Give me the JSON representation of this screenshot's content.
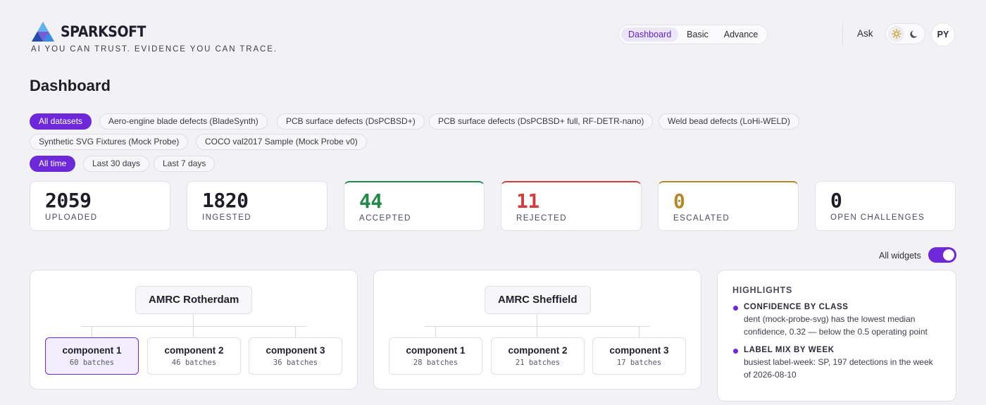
{
  "brand": {
    "name": "SPARKSOFT",
    "tagline": "AI YOU CAN TRUST. EVIDENCE YOU CAN TRACE.",
    "logo_icon": "triangle-logo-icon",
    "colors": {
      "accent": "#6d28d9",
      "accepted": "#23894a",
      "rejected": "#d43c3c",
      "escalated": "#b2892b"
    }
  },
  "nav": {
    "items": [
      {
        "label": "Dashboard",
        "active": true
      },
      {
        "label": "Basic",
        "active": false
      },
      {
        "label": "Advance",
        "active": false
      }
    ],
    "ask_label": "Ask",
    "theme": {
      "light_icon": "sun-icon",
      "dark_icon": "moon-icon",
      "selected": "light"
    },
    "avatar_initials": "PY"
  },
  "page_title": "Dashboard",
  "dataset_filters": [
    {
      "label": "All datasets",
      "active": true
    },
    {
      "label": "Aero-engine blade defects (BladeSynth)",
      "active": false
    },
    {
      "label": "PCB surface defects (DsPCBSD+)",
      "active": false
    },
    {
      "label": "PCB surface defects (DsPCBSD+ full, RF-DETR-nano)",
      "active": false
    },
    {
      "label": "Weld bead defects (LoHi-WELD)",
      "active": false
    },
    {
      "label": "Synthetic SVG Fixtures (Mock Probe)",
      "active": false
    },
    {
      "label": "COCO val2017 Sample (Mock Probe v0)",
      "active": false
    }
  ],
  "time_filters": [
    {
      "label": "All time",
      "active": true
    },
    {
      "label": "Last 30 days",
      "active": false
    },
    {
      "label": "Last 7 days",
      "active": false
    }
  ],
  "stats": [
    {
      "value": "2059",
      "label": "UPLOADED",
      "tone": "neutral"
    },
    {
      "value": "1820",
      "label": "INGESTED",
      "tone": "neutral"
    },
    {
      "value": "44",
      "label": "ACCEPTED",
      "tone": "green"
    },
    {
      "value": "11",
      "label": "REJECTED",
      "tone": "red"
    },
    {
      "value": "0",
      "label": "ESCALATED",
      "tone": "gold"
    },
    {
      "value": "0",
      "label": "OPEN CHALLENGES",
      "tone": "neutral"
    }
  ],
  "widgets_toggle": {
    "label": "All widgets",
    "on": true
  },
  "sites": [
    {
      "name": "AMRC Rotherdam",
      "components": [
        {
          "name": "component 1",
          "batches": "60 batches",
          "selected": true
        },
        {
          "name": "component 2",
          "batches": "46 batches",
          "selected": false
        },
        {
          "name": "component 3",
          "batches": "36 batches",
          "selected": false
        }
      ]
    },
    {
      "name": "AMRC Sheffield",
      "components": [
        {
          "name": "component 1",
          "batches": "28 batches",
          "selected": false
        },
        {
          "name": "component 2",
          "batches": "21 batches",
          "selected": false
        },
        {
          "name": "component 3",
          "batches": "17 batches",
          "selected": false
        }
      ]
    }
  ],
  "highlights": {
    "title": "HIGHLIGHTS",
    "items": [
      {
        "heading": "CONFIDENCE BY CLASS",
        "body": "dent (mock-probe-svg) has the lowest median confidence, 0.32 — below the 0.5 operating point"
      },
      {
        "heading": "LABEL MIX BY WEEK",
        "body": "busiest label-week: SP, 197 detections in the week of 2026-08-10"
      }
    ]
  }
}
